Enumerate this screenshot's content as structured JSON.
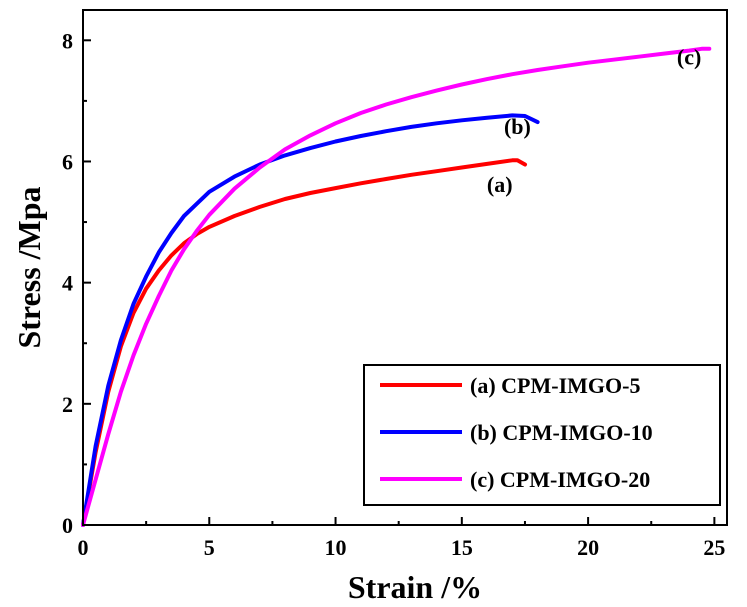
{
  "chart_data": {
    "type": "line",
    "xlabel": "Strain /%",
    "ylabel": "Stress /Mpa",
    "xlim": [
      0,
      25.5
    ],
    "ylim": [
      0,
      8.5
    ],
    "xticks": [
      0,
      5,
      10,
      15,
      20,
      25
    ],
    "yticks": [
      0,
      2,
      4,
      6,
      8
    ],
    "grid": false,
    "legend_position": "bottom-right",
    "series": [
      {
        "name": "(a) CPM-IMGO-5",
        "annotation": "(a)",
        "color": "#ff0000",
        "x": [
          0,
          0.5,
          1,
          1.5,
          2,
          2.5,
          3,
          3.5,
          4,
          4.5,
          5,
          6,
          7,
          8,
          9,
          10,
          11,
          12,
          13,
          14,
          15,
          16,
          17,
          17.2,
          17.5
        ],
        "y": [
          0,
          1.2,
          2.2,
          2.95,
          3.5,
          3.9,
          4.2,
          4.45,
          4.65,
          4.8,
          4.92,
          5.1,
          5.25,
          5.38,
          5.48,
          5.56,
          5.64,
          5.71,
          5.78,
          5.84,
          5.9,
          5.96,
          6.02,
          6.02,
          5.95
        ]
      },
      {
        "name": "(b) CPM-IMGO-10",
        "annotation": "(b)",
        "color": "#0000ff",
        "x": [
          0,
          0.5,
          1,
          1.5,
          2,
          2.5,
          3,
          3.5,
          4,
          4.5,
          5,
          6,
          7,
          8,
          9,
          10,
          11,
          12,
          13,
          14,
          15,
          16,
          17,
          17.5,
          18
        ],
        "y": [
          0,
          1.3,
          2.3,
          3.05,
          3.65,
          4.1,
          4.5,
          4.82,
          5.1,
          5.3,
          5.5,
          5.75,
          5.95,
          6.1,
          6.22,
          6.33,
          6.42,
          6.5,
          6.57,
          6.63,
          6.68,
          6.72,
          6.76,
          6.75,
          6.65
        ]
      },
      {
        "name": "(c) CPM-IMGO-20",
        "annotation": "(c)",
        "color": "#ff00ff",
        "x": [
          0,
          0.5,
          1,
          1.5,
          2,
          2.5,
          3,
          3.5,
          4,
          4.5,
          5,
          6,
          7,
          8,
          9,
          10,
          11,
          12,
          13,
          14,
          15,
          16,
          17,
          18,
          19,
          20,
          21,
          22,
          23,
          24,
          24.5,
          24.8
        ],
        "y": [
          0,
          0.75,
          1.5,
          2.2,
          2.8,
          3.32,
          3.78,
          4.2,
          4.55,
          4.85,
          5.12,
          5.55,
          5.9,
          6.2,
          6.43,
          6.63,
          6.8,
          6.94,
          7.06,
          7.17,
          7.27,
          7.36,
          7.44,
          7.51,
          7.57,
          7.63,
          7.68,
          7.73,
          7.78,
          7.83,
          7.86,
          7.86
        ]
      }
    ]
  }
}
